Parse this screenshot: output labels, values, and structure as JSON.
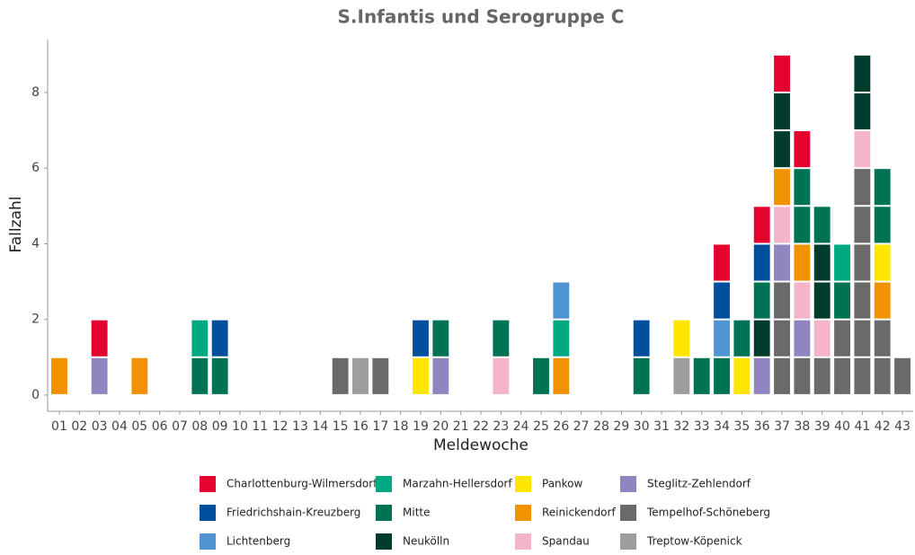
{
  "chart_data": {
    "type": "bar",
    "stacked": true,
    "title": "S.Infantis und Serogruppe C",
    "x_label": "Meldewoche",
    "y_label": "Fallzahl",
    "categories": [
      "01",
      "02",
      "03",
      "04",
      "05",
      "06",
      "07",
      "08",
      "09",
      "10",
      "11",
      "12",
      "13",
      "14",
      "15",
      "16",
      "17",
      "18",
      "19",
      "20",
      "21",
      "22",
      "23",
      "24",
      "25",
      "26",
      "27",
      "28",
      "29",
      "30",
      "31",
      "32",
      "33",
      "34",
      "35",
      "36",
      "37",
      "38",
      "39",
      "40",
      "41",
      "42",
      "43"
    ],
    "ylim": [
      -0.43,
      9.4
    ],
    "yticks": [
      0,
      2,
      4,
      6,
      8
    ],
    "series": [
      {
        "name": "Charlottenburg-Wilmersdorf",
        "color": "#e4032e",
        "values": [
          0,
          0,
          1,
          0,
          0,
          0,
          0,
          0,
          0,
          0,
          0,
          0,
          0,
          0,
          0,
          0,
          0,
          0,
          0,
          0,
          0,
          0,
          0,
          0,
          0,
          0,
          0,
          0,
          0,
          0,
          0,
          0,
          0,
          1,
          0,
          1,
          1,
          1,
          0,
          0,
          0,
          0,
          0
        ]
      },
      {
        "name": "Friedrichshain-Kreuzberg",
        "color": "#004f9f",
        "values": [
          0,
          0,
          0,
          0,
          0,
          0,
          0,
          0,
          1,
          0,
          0,
          0,
          0,
          0,
          0,
          0,
          0,
          0,
          1,
          0,
          0,
          0,
          0,
          0,
          0,
          0,
          0,
          0,
          0,
          1,
          0,
          0,
          0,
          1,
          0,
          1,
          0,
          0,
          0,
          0,
          0,
          0,
          0
        ]
      },
      {
        "name": "Lichtenberg",
        "color": "#5095d3",
        "values": [
          0,
          0,
          0,
          0,
          0,
          0,
          0,
          0,
          0,
          0,
          0,
          0,
          0,
          0,
          0,
          0,
          0,
          0,
          0,
          0,
          0,
          0,
          0,
          0,
          0,
          1,
          0,
          0,
          0,
          0,
          0,
          0,
          0,
          1,
          0,
          0,
          0,
          0,
          0,
          0,
          0,
          0,
          0
        ]
      },
      {
        "name": "Marzahn-Hellersdorf",
        "color": "#00a982",
        "values": [
          0,
          0,
          0,
          0,
          0,
          0,
          0,
          1,
          0,
          0,
          0,
          0,
          0,
          0,
          0,
          0,
          0,
          0,
          0,
          0,
          0,
          0,
          0,
          0,
          0,
          1,
          0,
          0,
          0,
          0,
          0,
          0,
          0,
          0,
          0,
          0,
          0,
          0,
          0,
          1,
          0,
          0,
          0
        ]
      },
      {
        "name": "Mitte",
        "color": "#007355",
        "values": [
          0,
          0,
          0,
          0,
          0,
          0,
          0,
          1,
          1,
          0,
          0,
          0,
          0,
          0,
          0,
          0,
          0,
          0,
          0,
          1,
          0,
          0,
          1,
          0,
          1,
          0,
          0,
          0,
          0,
          1,
          0,
          0,
          1,
          1,
          1,
          1,
          0,
          2,
          1,
          1,
          0,
          2,
          0
        ]
      },
      {
        "name": "Neukölln",
        "color": "#003c2d",
        "values": [
          0,
          0,
          0,
          0,
          0,
          0,
          0,
          0,
          0,
          0,
          0,
          0,
          0,
          0,
          0,
          0,
          0,
          0,
          0,
          0,
          0,
          0,
          0,
          0,
          0,
          0,
          0,
          0,
          0,
          0,
          0,
          0,
          0,
          0,
          0,
          1,
          2,
          0,
          2,
          0,
          2,
          0,
          0
        ]
      },
      {
        "name": "Pankow",
        "color": "#ffe500",
        "values": [
          0,
          0,
          0,
          0,
          0,
          0,
          0,
          0,
          0,
          0,
          0,
          0,
          0,
          0,
          0,
          0,
          0,
          0,
          1,
          0,
          0,
          0,
          0,
          0,
          0,
          0,
          0,
          0,
          0,
          0,
          0,
          1,
          0,
          0,
          1,
          0,
          0,
          0,
          0,
          0,
          0,
          1,
          0
        ]
      },
      {
        "name": "Reinickendorf",
        "color": "#f39200",
        "values": [
          1,
          0,
          0,
          0,
          1,
          0,
          0,
          0,
          0,
          0,
          0,
          0,
          0,
          0,
          0,
          0,
          0,
          0,
          0,
          0,
          0,
          0,
          0,
          0,
          0,
          1,
          0,
          0,
          0,
          0,
          0,
          0,
          0,
          0,
          0,
          0,
          1,
          1,
          0,
          0,
          0,
          1,
          0
        ]
      },
      {
        "name": "Spandau",
        "color": "#f4b5cb",
        "values": [
          0,
          0,
          0,
          0,
          0,
          0,
          0,
          0,
          0,
          0,
          0,
          0,
          0,
          0,
          0,
          0,
          0,
          0,
          0,
          0,
          0,
          0,
          1,
          0,
          0,
          0,
          0,
          0,
          0,
          0,
          0,
          0,
          0,
          0,
          0,
          0,
          1,
          1,
          1,
          0,
          1,
          0,
          0
        ]
      },
      {
        "name": "Steglitz-Zehlendorf",
        "color": "#9085c0",
        "values": [
          0,
          0,
          1,
          0,
          0,
          0,
          0,
          0,
          0,
          0,
          0,
          0,
          0,
          0,
          0,
          0,
          0,
          0,
          0,
          1,
          0,
          0,
          0,
          0,
          0,
          0,
          0,
          0,
          0,
          0,
          0,
          0,
          0,
          0,
          0,
          1,
          1,
          1,
          0,
          0,
          0,
          0,
          0
        ]
      },
      {
        "name": "Tempelhof-Schöneberg",
        "color": "#6a6a6a",
        "values": [
          0,
          0,
          0,
          0,
          0,
          0,
          0,
          0,
          0,
          0,
          0,
          0,
          0,
          0,
          1,
          0,
          1,
          0,
          0,
          0,
          0,
          0,
          0,
          0,
          0,
          0,
          0,
          0,
          0,
          0,
          0,
          0,
          0,
          0,
          0,
          0,
          3,
          1,
          1,
          2,
          6,
          2,
          1
        ]
      },
      {
        "name": "Treptow-Köpenick",
        "color": "#9d9d9d",
        "values": [
          0,
          0,
          0,
          0,
          0,
          0,
          0,
          0,
          0,
          0,
          0,
          0,
          0,
          0,
          0,
          1,
          0,
          0,
          0,
          0,
          0,
          0,
          0,
          0,
          0,
          0,
          0,
          0,
          0,
          0,
          0,
          1,
          0,
          0,
          0,
          0,
          0,
          0,
          0,
          0,
          0,
          0,
          0
        ]
      }
    ]
  }
}
